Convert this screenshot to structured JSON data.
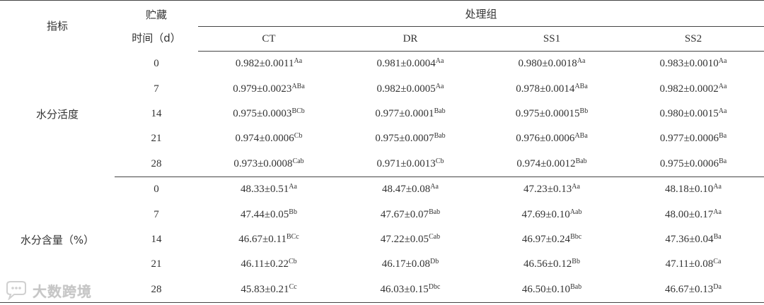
{
  "header": {
    "indicator": "指标",
    "storage_line1": "贮藏",
    "storage_line2": "时间（d）",
    "group": "处理组",
    "columns": [
      "CT",
      "DR",
      "SS1",
      "SS2"
    ]
  },
  "sections": [
    {
      "label": "水分活度",
      "rows": [
        {
          "day": "0",
          "cells": [
            [
              "0.982±0.0011",
              "Aa"
            ],
            [
              "0.981±0.0004",
              "Aa"
            ],
            [
              "0.980±0.0018",
              "Aa"
            ],
            [
              "0.983±0.0010",
              "Aa"
            ]
          ]
        },
        {
          "day": "7",
          "cells": [
            [
              "0.979±0.0023",
              "ABa"
            ],
            [
              "0.982±0.0005",
              "Aa"
            ],
            [
              "0.978±0.0014",
              "ABa"
            ],
            [
              "0.982±0.0002",
              "Aa"
            ]
          ]
        },
        {
          "day": "14",
          "cells": [
            [
              "0.975±0.0003",
              "BCb"
            ],
            [
              "0.977±0.0001",
              "Bab"
            ],
            [
              "0.975±0.00015",
              "Bb"
            ],
            [
              "0.980±0.0015",
              "Aa"
            ]
          ]
        },
        {
          "day": "21",
          "cells": [
            [
              "0.974±0.0006",
              "Cb"
            ],
            [
              "0.975±0.0007",
              "Bab"
            ],
            [
              "0.976±0.0006",
              "ABa"
            ],
            [
              "0.977±0.0006",
              "Ba"
            ]
          ]
        },
        {
          "day": "28",
          "cells": [
            [
              "0.973±0.0008",
              "Cab"
            ],
            [
              "0.971±0.0013",
              "Cb"
            ],
            [
              "0.974±0.0012",
              "Bab"
            ],
            [
              "0.975±0.0006",
              "Ba"
            ]
          ]
        }
      ]
    },
    {
      "label": "水分含量（%）",
      "rows": [
        {
          "day": "0",
          "cells": [
            [
              "48.33±0.51",
              "Aa"
            ],
            [
              "48.47±0.08",
              "Aa"
            ],
            [
              "47.23±0.13",
              "Aa"
            ],
            [
              "48.18±0.10",
              "Aa"
            ]
          ]
        },
        {
          "day": "7",
          "cells": [
            [
              "47.44±0.05",
              "Bb"
            ],
            [
              "47.67±0.07",
              "Bab"
            ],
            [
              "47.69±0.10",
              "Aab"
            ],
            [
              "48.00±0.17",
              "Aa"
            ]
          ]
        },
        {
          "day": "14",
          "cells": [
            [
              "46.67±0.11",
              "BCc"
            ],
            [
              "47.22±0.05",
              "Cab"
            ],
            [
              "46.97±0.24",
              "Bbc"
            ],
            [
              "47.36±0.04",
              "Ba"
            ]
          ]
        },
        {
          "day": "21",
          "cells": [
            [
              "46.11±0.22",
              "Cb"
            ],
            [
              "46.17±0.08",
              "Db"
            ],
            [
              "46.56±0.12",
              "Bb"
            ],
            [
              "47.11±0.08",
              "Ca"
            ]
          ]
        },
        {
          "day": "28",
          "cells": [
            [
              "45.83±0.21",
              "Cc"
            ],
            [
              "46.03±0.15",
              "Dbc"
            ],
            [
              "46.50±0.10",
              "Bab"
            ],
            [
              "46.67±0.13",
              "Da"
            ]
          ]
        }
      ]
    }
  ],
  "watermark": {
    "text": "大数跨境",
    "icon": "chat-bubble-icon"
  }
}
